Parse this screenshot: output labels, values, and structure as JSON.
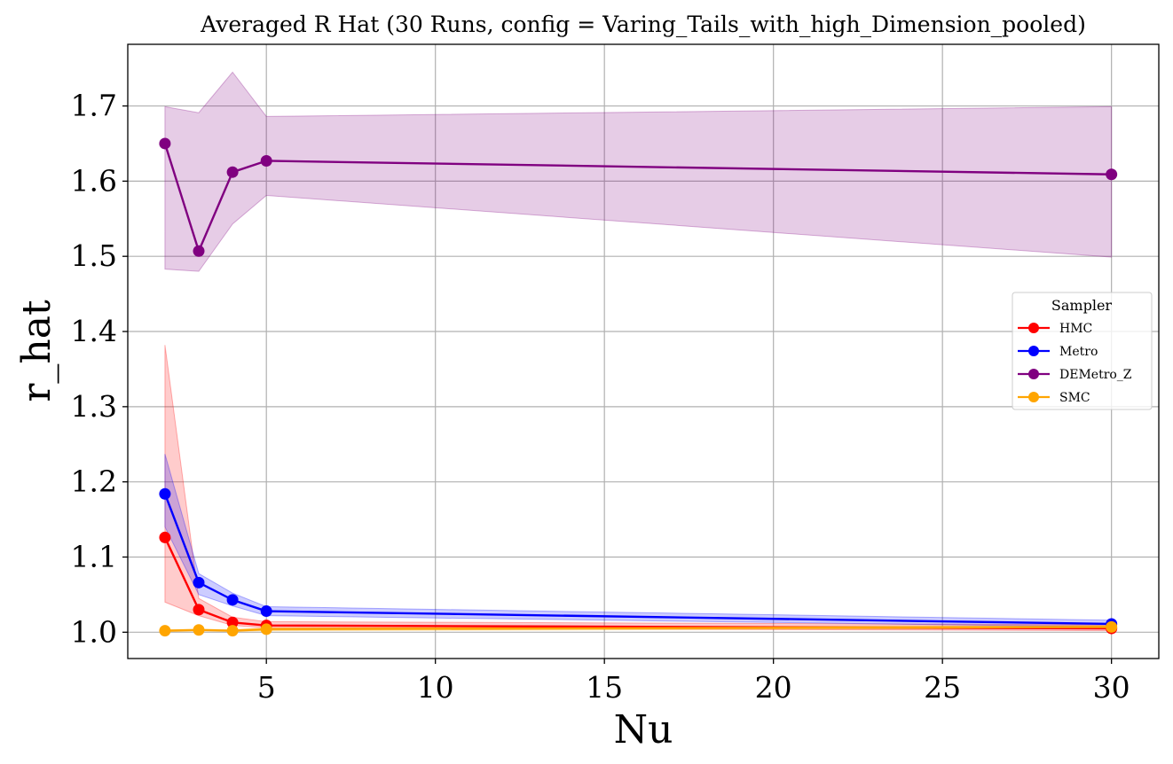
{
  "chart_data": {
    "type": "line",
    "title": "Averaged R Hat (30 Runs, config = Varing_Tails_with_high_Dimension_pooled)",
    "xlabel": "Nu",
    "ylabel": "r_hat",
    "x": [
      2,
      3,
      4,
      5,
      30
    ],
    "xlim": [
      0.9,
      31.4
    ],
    "ylim": [
      0.965,
      1.782
    ],
    "xticks": [
      5,
      10,
      15,
      20,
      25,
      30
    ],
    "xtick_labels": [
      "5",
      "10",
      "15",
      "20",
      "25",
      "30"
    ],
    "yticks": [
      1.0,
      1.1,
      1.2,
      1.3,
      1.4,
      1.5,
      1.6,
      1.7
    ],
    "ytick_labels": [
      "1.0",
      "1.1",
      "1.2",
      "1.3",
      "1.4",
      "1.5",
      "1.6",
      "1.7"
    ],
    "grid": true,
    "legend": {
      "title": "Sampler",
      "position": "center-right"
    },
    "series": [
      {
        "name": "HMC",
        "color": "#ff0000",
        "values": [
          1.126,
          1.03,
          1.013,
          1.009,
          1.005
        ],
        "lower": [
          1.04,
          1.022,
          1.009,
          1.006,
          1.002
        ],
        "upper": [
          1.382,
          1.045,
          1.02,
          1.014,
          1.01
        ]
      },
      {
        "name": "Metro",
        "color": "#0000ff",
        "values": [
          1.184,
          1.066,
          1.043,
          1.028,
          1.011
        ],
        "lower": [
          1.14,
          1.05,
          1.035,
          1.022,
          1.007
        ],
        "upper": [
          1.237,
          1.078,
          1.052,
          1.034,
          1.016
        ]
      },
      {
        "name": "DEMetro_Z",
        "color": "#800080",
        "values": [
          1.65,
          1.507,
          1.612,
          1.627,
          1.609
        ],
        "lower": [
          1.483,
          1.48,
          1.543,
          1.581,
          1.499
        ],
        "upper": [
          1.699,
          1.691,
          1.745,
          1.686,
          1.699
        ]
      },
      {
        "name": "SMC",
        "color": "#ffa500",
        "values": [
          1.002,
          1.003,
          1.002,
          1.004,
          1.007
        ],
        "lower": [
          1.001,
          1.002,
          1.001,
          1.002,
          1.005
        ],
        "upper": [
          1.003,
          1.004,
          1.003,
          1.006,
          1.009
        ]
      }
    ]
  }
}
